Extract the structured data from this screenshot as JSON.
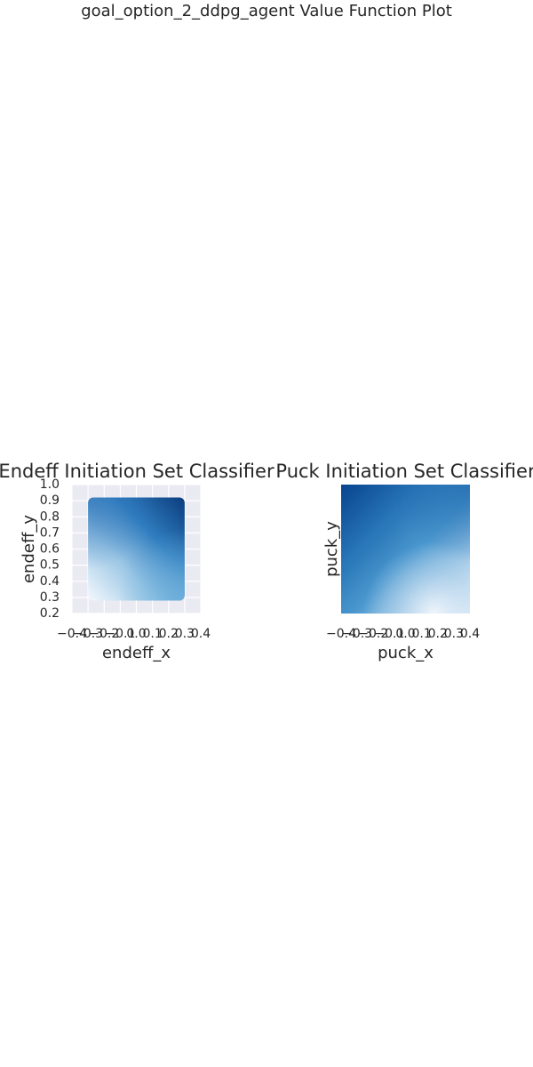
{
  "figure": {
    "suptitle": "goal_option_2_ddpg_agent Value Function Plot"
  },
  "chart_data": [
    {
      "type": "heatmap",
      "title": "Endeff Initiation Set Classifier",
      "xlabel": "endeff_x",
      "ylabel": "endeff_y",
      "xlim": [
        -0.4,
        0.4
      ],
      "ylim": [
        0.2,
        1.0
      ],
      "xticks": [
        "−0.4",
        "−0.3",
        "−0.2",
        "−0.1",
        "0.0",
        "0.1",
        "0.2",
        "0.3",
        "0.4"
      ],
      "yticks": [
        "0.2",
        "0.3",
        "0.4",
        "0.5",
        "0.6",
        "0.7",
        "0.8",
        "0.9",
        "1.0"
      ],
      "grid": true,
      "colormap": "Blues",
      "background": "#eaeaf2",
      "data_extent": {
        "x": [
          -0.3,
          0.3
        ],
        "y": [
          0.28,
          0.92
        ]
      },
      "colors": {
        "top_right": "#0b3c7d",
        "top_left": "#2b72b8",
        "bottom_right": "#6db0dc",
        "bottom_left": "#f4f8fd"
      }
    },
    {
      "type": "heatmap",
      "title": "Puck Initiation Set Classifier",
      "xlabel": "puck_x",
      "ylabel": "puck_y",
      "xlim": [
        -0.4,
        0.4
      ],
      "ylim": [
        0.2,
        1.0
      ],
      "xticks": [
        "−0.4",
        "−0.3",
        "−0.2",
        "−0.1",
        "0.0",
        "0.1",
        "0.2",
        "0.3",
        "0.4"
      ],
      "yticks": [],
      "grid": false,
      "colormap": "Blues",
      "colors": {
        "top_left": "#08448f",
        "top_right": "#2673b6",
        "bottom_left": "#3b86c3",
        "bottom_right": "#f2f6fc",
        "center": "#4b98cf"
      }
    }
  ]
}
